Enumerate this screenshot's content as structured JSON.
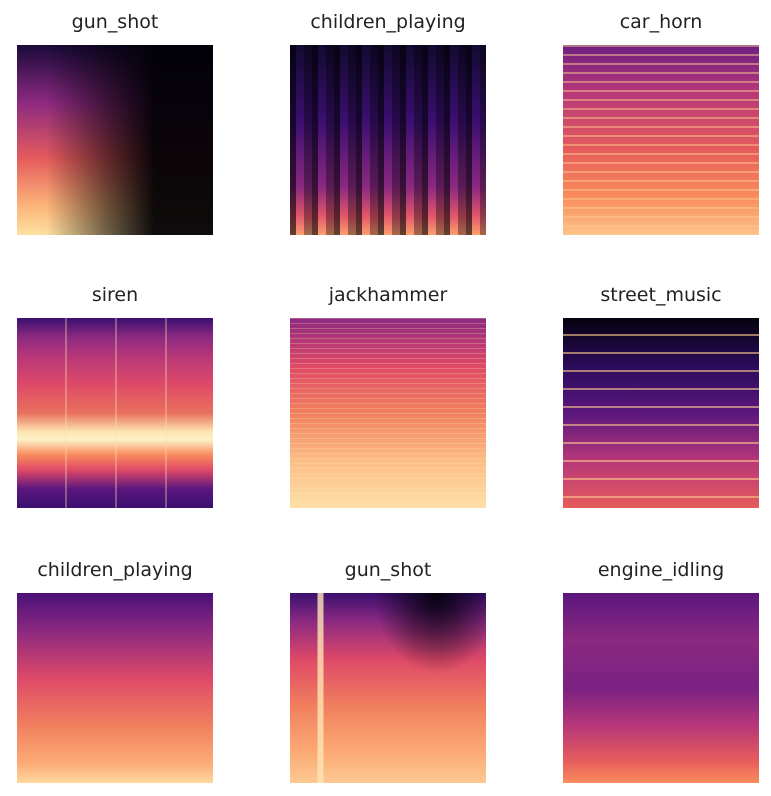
{
  "panels": [
    {
      "title": "gun_shot"
    },
    {
      "title": "children_playing"
    },
    {
      "title": "car_horn"
    },
    {
      "title": "siren"
    },
    {
      "title": "jackhammer"
    },
    {
      "title": "street_music"
    },
    {
      "title": "children_playing"
    },
    {
      "title": "gun_shot"
    },
    {
      "title": "engine_idling"
    }
  ],
  "colormap": [
    "#000004",
    "#3b0f70",
    "#8c2981",
    "#de4968",
    "#fe9f6d",
    "#fcfdbf"
  ]
}
